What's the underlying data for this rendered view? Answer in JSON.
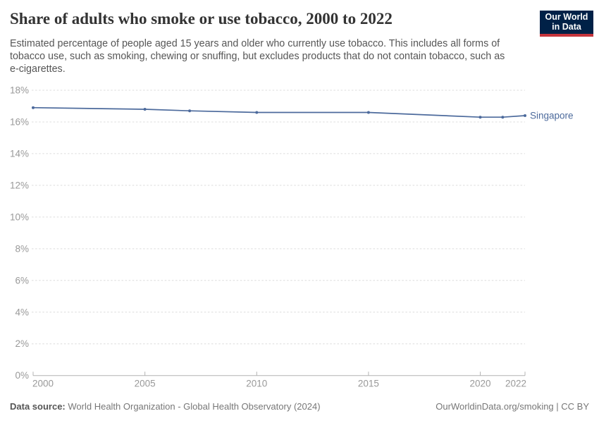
{
  "header": {
    "title": "Share of adults who smoke or use tobacco, 2000 to 2022",
    "subtitle_lines": [
      "Estimated percentage of people aged 15 years and older who currently use tobacco. This includes all forms of",
      "tobacco use, such as smoking, chewing or snuffing, but excludes products that do not contain tobacco, such as",
      "e-cigarettes."
    ],
    "logo": {
      "line1": "Our World",
      "line2": "in Data"
    }
  },
  "chart_data": {
    "type": "line",
    "title": "Share of adults who smoke or use tobacco, 2000 to 2022",
    "xlabel": "",
    "ylabel": "",
    "x_range": [
      2000,
      2022
    ],
    "y_range": [
      0,
      18
    ],
    "y_ticks": [
      0,
      2,
      4,
      6,
      8,
      10,
      12,
      14,
      16,
      18
    ],
    "y_tick_suffix": "%",
    "x_ticks": [
      2000,
      2005,
      2010,
      2015,
      2020,
      2022
    ],
    "grid": "horizontal-dashed",
    "legend_position": "line-end-label",
    "series": [
      {
        "name": "Singapore",
        "color": "#4C6A9C",
        "x": [
          2000,
          2005,
          2007,
          2010,
          2015,
          2020,
          2021,
          2022
        ],
        "values": [
          16.9,
          16.8,
          16.7,
          16.6,
          16.6,
          16.3,
          16.3,
          16.4
        ]
      }
    ]
  },
  "footer": {
    "source_label": "Data source:",
    "source_text": "World Health Organization - Global Health Observatory (2024)",
    "credit": "OurWorldinData.org/smoking | CC BY"
  },
  "colors": {
    "accent_line": "#4C6A9C",
    "logo_bg": "#002147",
    "logo_accent": "#C5353C",
    "grid": "#dcdcdc",
    "axis": "#b3b3b3",
    "tick_label": "#999999",
    "title_text": "#333333",
    "subtitle_text": "#565656",
    "footer_text": "#777777"
  }
}
